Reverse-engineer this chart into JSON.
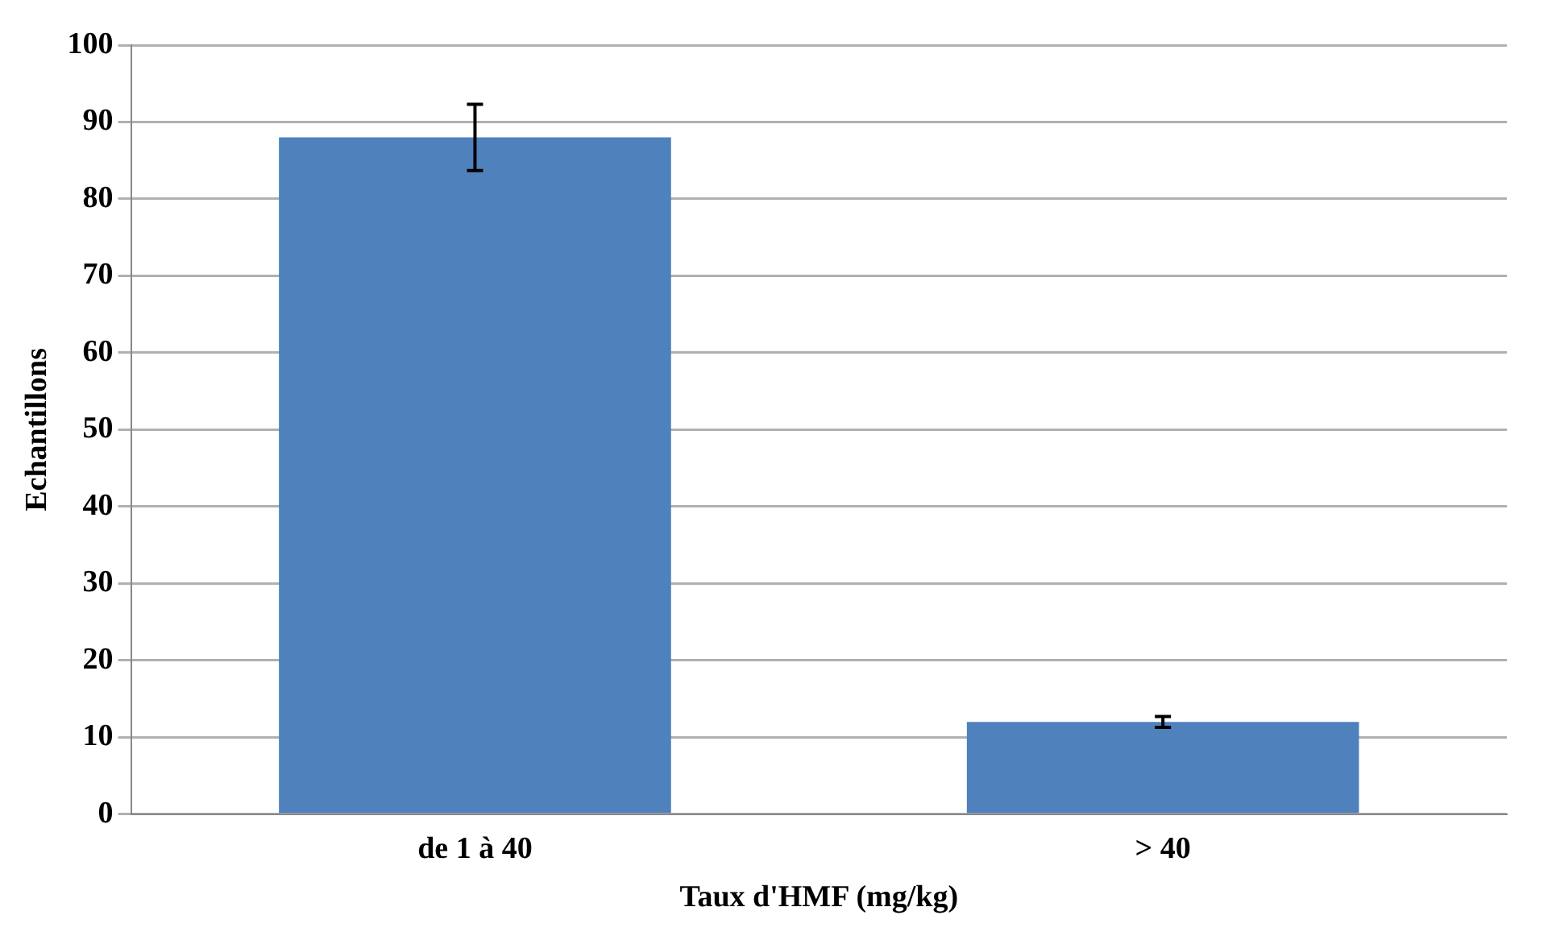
{
  "chart_data": {
    "type": "bar",
    "xlabel": "Taux d'HMF (mg/kg)",
    "ylabel": "Echantillons",
    "categories": [
      "de 1 à 40",
      "> 40"
    ],
    "values": [
      88,
      12
    ],
    "errors": [
      4.3,
      0.7
    ],
    "color": "#4f81bd",
    "ylim": [
      0,
      100
    ],
    "yticks": [
      0,
      10,
      20,
      30,
      40,
      50,
      60,
      70,
      80,
      90,
      100
    ],
    "grid": "y",
    "legend": false
  }
}
